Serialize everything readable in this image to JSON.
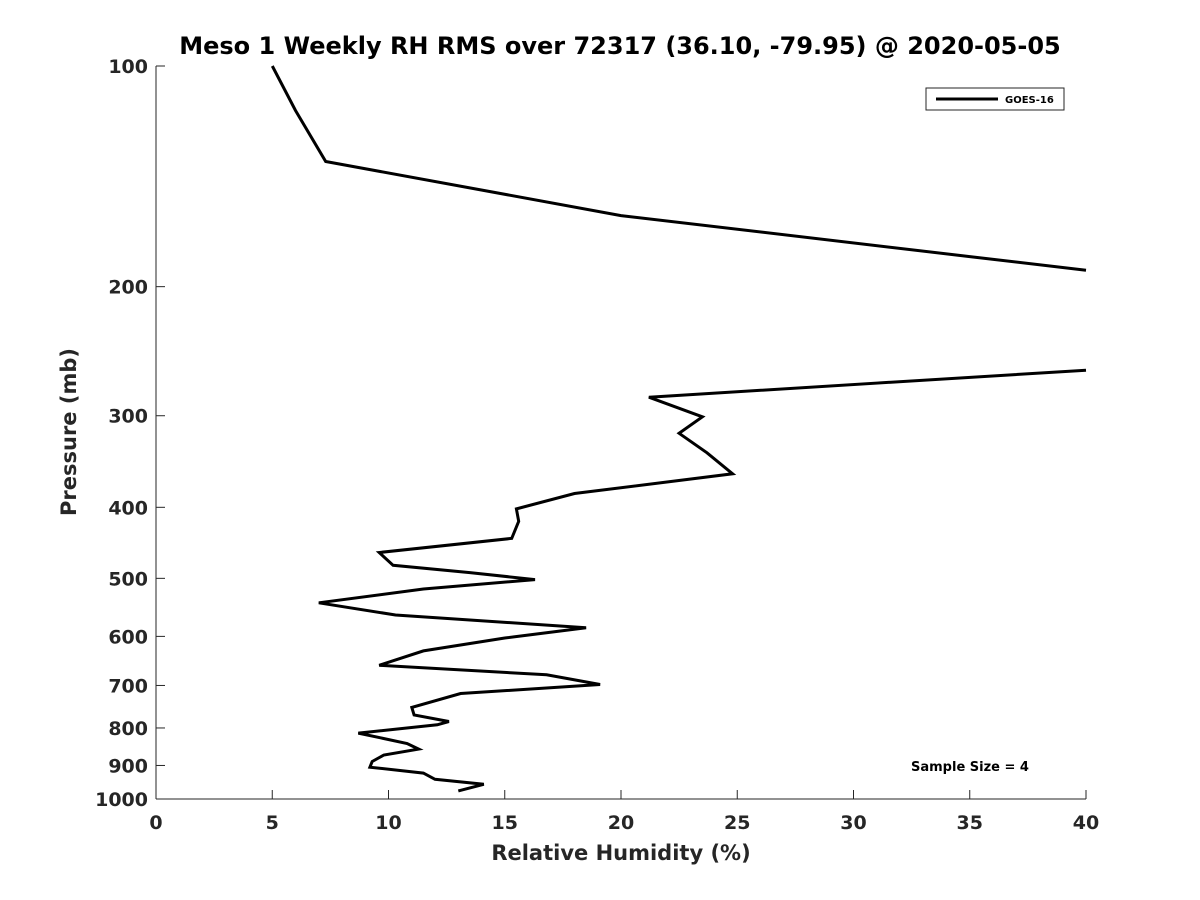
{
  "chart_data": {
    "type": "line",
    "title": "Meso 1 Weekly RH RMS over 72317 (36.10, -79.95) @ 2020-05-05",
    "xlabel": "Relative Humidity (%)",
    "ylabel": "Pressure (mb)",
    "xlim": [
      0,
      40
    ],
    "ylim": [
      100,
      1000
    ],
    "y_scale": "log",
    "y_reversed": true,
    "x_ticks": [
      "0",
      "5",
      "10",
      "15",
      "20",
      "25",
      "30",
      "35",
      "40"
    ],
    "y_ticks": [
      "100",
      "200",
      "300",
      "400",
      "500",
      "600",
      "700",
      "800",
      "900",
      "1000"
    ],
    "grid": false,
    "legend_position": "top-right",
    "annotation": "Sample Size = 4",
    "series": [
      {
        "name": "GOES-16",
        "color": "#000000",
        "segments": [
          [
            [
              5.0,
              100
            ],
            [
              6.0,
              115
            ],
            [
              7.3,
              135
            ],
            [
              20.0,
              160
            ],
            [
              35.0,
              182
            ],
            [
              40.0,
              190
            ]
          ],
          [
            [
              40.0,
              260
            ],
            [
              21.2,
              283
            ],
            [
              23.5,
              301
            ],
            [
              22.5,
              317
            ],
            [
              23.7,
              337
            ],
            [
              24.8,
              360
            ],
            [
              18.0,
              383
            ],
            [
              15.5,
              402
            ],
            [
              15.6,
              418
            ],
            [
              15.3,
              441
            ],
            [
              9.6,
              461
            ],
            [
              10.2,
              480
            ],
            [
              13.5,
              491
            ],
            [
              16.3,
              502
            ],
            [
              11.5,
              517
            ],
            [
              7.0,
              540
            ],
            [
              10.3,
              561
            ],
            [
              18.5,
              584
            ],
            [
              15.0,
              603
            ],
            [
              11.5,
              628
            ],
            [
              9.6,
              657
            ],
            [
              16.8,
              677
            ],
            [
              19.1,
              698
            ],
            [
              13.1,
              718
            ],
            [
              11.0,
              750
            ],
            [
              11.1,
              768
            ],
            [
              12.6,
              784
            ],
            [
              12.1,
              792
            ],
            [
              8.7,
              813
            ],
            [
              10.8,
              840
            ],
            [
              11.3,
              855
            ],
            [
              9.8,
              871
            ],
            [
              9.3,
              889
            ],
            [
              9.2,
              905
            ],
            [
              11.5,
              922
            ],
            [
              12.0,
              940
            ],
            [
              14.1,
              955
            ],
            [
              13.0,
              975
            ]
          ]
        ]
      }
    ]
  }
}
